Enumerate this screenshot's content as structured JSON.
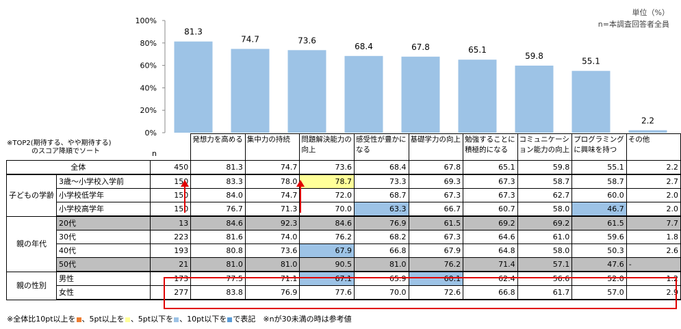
{
  "unit_note": "単位（%）",
  "n_note": "n=本調査回答者全員",
  "sort_note_1": "※TOP2(期待する、やや期待する)",
  "sort_note_2": "のスコア降順でソート",
  "n_header": "n",
  "footnote": {
    "p1": "※全体比10pt以上を",
    "p2": "、5pt以上を",
    "p3": "、5pt以下を",
    "p4": "、10pt以下を",
    "p5": "で表記　※nが30未満の時は参考値"
  },
  "colors": {
    "bar": "#9dc3e6",
    "low10": "#5b9bd5",
    "low5": "#9dc3e6",
    "high5": "#ffff99",
    "high10": "#ed7d31",
    "gray": "#bfbfbf",
    "highlight_box": "#e00000"
  },
  "chart_data": {
    "type": "bar",
    "categories": [
      "発想力を高める",
      "集中力の持続",
      "問題解決能力の向上",
      "感受性が豊かになる",
      "基礎学力の向上",
      "勉強することに積極的になる",
      "コミュニケーション能力の向上",
      "プログラミングに興味を持つ",
      "その他"
    ],
    "values": [
      81.3,
      74.7,
      73.6,
      68.4,
      67.8,
      65.1,
      59.8,
      55.1,
      2.2
    ],
    "y_ticks": [
      "0%",
      "20%",
      "40%",
      "60%",
      "80%",
      "100%"
    ],
    "ylim": [
      0,
      100
    ],
    "grid": false
  },
  "table": {
    "headers": [
      "発想力を高める",
      "集中力の持続",
      "問題解決能力の向上",
      "感受性が豊かになる",
      "基礎学力の向上",
      "勉強することに積極的になる",
      "コミュニケーション能力の向上",
      "プログラミングに興味を持つ",
      "その他"
    ],
    "total": {
      "label": "全体",
      "n": "450",
      "values": [
        "81.3",
        "74.7",
        "73.6",
        "68.4",
        "67.8",
        "65.1",
        "59.8",
        "55.1",
        "2.2"
      ]
    },
    "groups": [
      {
        "label": "子どもの学齢",
        "rows": [
          {
            "label": "3歳～小学校入学前",
            "n": "150",
            "values": [
              "83.3",
              "78.0",
              "78.7",
              "73.3",
              "69.3",
              "67.3",
              "58.7",
              "58.7",
              "2.7"
            ]
          },
          {
            "label": "小学校低学年",
            "n": "150",
            "values": [
              "84.0",
              "74.7",
              "72.0",
              "68.7",
              "67.3",
              "67.3",
              "62.7",
              "60.0",
              "2.0"
            ]
          },
          {
            "label": "小学校高学年",
            "n": "150",
            "values": [
              "76.7",
              "71.3",
              "70.0",
              "63.3",
              "66.7",
              "60.7",
              "58.0",
              "46.7",
              "2.0"
            ]
          }
        ]
      },
      {
        "label": "親の年代",
        "rows": [
          {
            "label": "20代",
            "n": "13",
            "values": [
              "84.6",
              "92.3",
              "84.6",
              "76.9",
              "61.5",
              "69.2",
              "69.2",
              "61.5",
              "7.7"
            ]
          },
          {
            "label": "30代",
            "n": "223",
            "values": [
              "81.6",
              "74.0",
              "76.2",
              "68.2",
              "67.3",
              "64.6",
              "61.0",
              "59.6",
              "1.8"
            ]
          },
          {
            "label": "40代",
            "n": "193",
            "values": [
              "80.8",
              "73.6",
              "67.9",
              "66.8",
              "67.9",
              "64.8",
              "58.0",
              "50.3",
              "2.6"
            ]
          },
          {
            "label": "50代",
            "n": "21",
            "values": [
              "81.0",
              "81.0",
              "90.5",
              "81.0",
              "76.2",
              "71.4",
              "57.1",
              "47.6",
              "-"
            ]
          }
        ]
      },
      {
        "label": "親の性別",
        "rows": [
          {
            "label": "男性",
            "n": "173",
            "values": [
              "77.5",
              "71.1",
              "67.1",
              "65.9",
              "60.1",
              "62.4",
              "56.6",
              "52.0",
              "1.2"
            ]
          },
          {
            "label": "女性",
            "n": "277",
            "values": [
              "83.8",
              "76.9",
              "77.6",
              "70.0",
              "72.6",
              "66.8",
              "61.7",
              "57.0",
              "2.9"
            ]
          }
        ]
      }
    ]
  }
}
